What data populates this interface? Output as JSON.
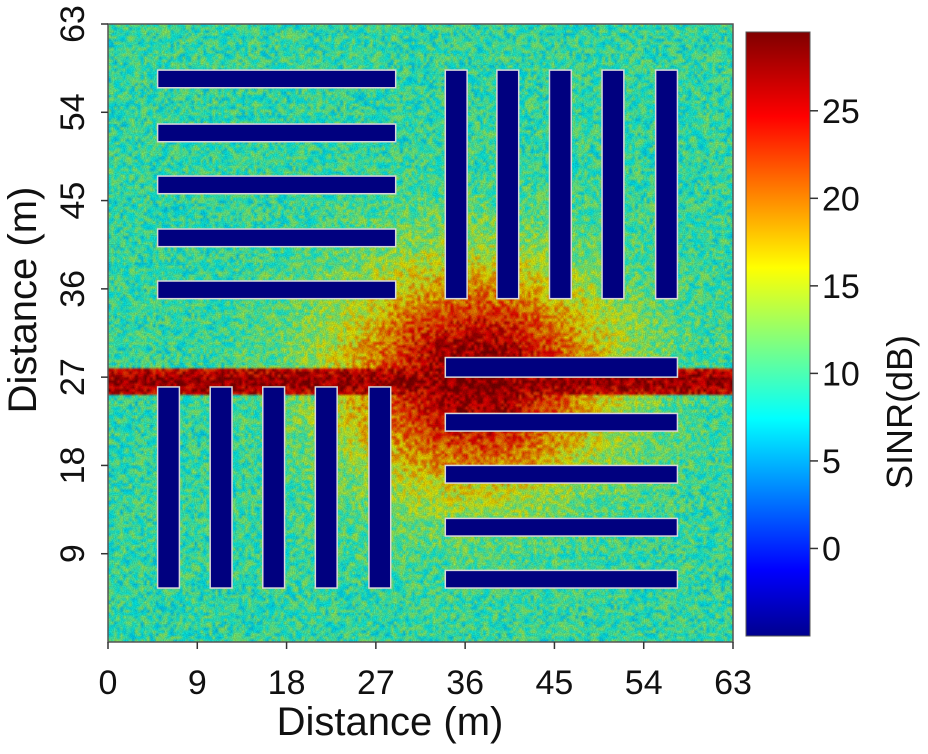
{
  "chart_data": {
    "type": "heatmap",
    "title": "",
    "xlabel": "Distance (m)",
    "ylabel": "Distance (m)",
    "xlim": [
      0,
      63
    ],
    "ylim": [
      0,
      63
    ],
    "xticks": [
      "0",
      "9",
      "18",
      "27",
      "36",
      "45",
      "54",
      "63"
    ],
    "yticks": [
      "9",
      "18",
      "27",
      "36",
      "45",
      "54",
      "63"
    ],
    "colorbar": {
      "label": "SINR(dB)",
      "range": [
        -5,
        29.5
      ],
      "ticks": [
        "0",
        "5",
        "10",
        "15",
        "20",
        "25"
      ],
      "colormap": "jet"
    },
    "background_level_db": 10,
    "hotspot": {
      "x": 37,
      "y": 27,
      "peak_db": 29
    },
    "beam_row": {
      "y": 26.5,
      "level_db": 28
    },
    "obstacle_level_db": -5,
    "obstacles": [
      {
        "x": [
          5,
          29
        ],
        "y": [
          56.5,
          58.3
        ]
      },
      {
        "x": [
          5,
          29
        ],
        "y": [
          51,
          52.8
        ]
      },
      {
        "x": [
          5,
          29
        ],
        "y": [
          45.7,
          47.5
        ]
      },
      {
        "x": [
          5,
          29
        ],
        "y": [
          40.3,
          42.1
        ]
      },
      {
        "x": [
          5,
          29
        ],
        "y": [
          35,
          36.8
        ]
      },
      {
        "x": [
          34,
          36.2
        ],
        "y": [
          35,
          58.3
        ]
      },
      {
        "x": [
          39.2,
          41.4
        ],
        "y": [
          35,
          58.3
        ]
      },
      {
        "x": [
          44.5,
          46.7
        ],
        "y": [
          35,
          58.3
        ]
      },
      {
        "x": [
          49.8,
          52
        ],
        "y": [
          35,
          58.3
        ]
      },
      {
        "x": [
          55.2,
          57.4
        ],
        "y": [
          35,
          58.3
        ]
      },
      {
        "x": [
          34,
          57.4
        ],
        "y": [
          27,
          29
        ]
      },
      {
        "x": [
          34,
          57.4
        ],
        "y": [
          21.5,
          23.3
        ]
      },
      {
        "x": [
          34,
          57.4
        ],
        "y": [
          16.2,
          18
        ]
      },
      {
        "x": [
          34,
          57.4
        ],
        "y": [
          10.8,
          12.6
        ]
      },
      {
        "x": [
          34,
          57.4
        ],
        "y": [
          5.5,
          7.3
        ]
      },
      {
        "x": [
          5,
          7.2
        ],
        "y": [
          5.5,
          26
        ]
      },
      {
        "x": [
          10.3,
          12.5
        ],
        "y": [
          5.5,
          26
        ]
      },
      {
        "x": [
          15.6,
          17.8
        ],
        "y": [
          5.5,
          26
        ]
      },
      {
        "x": [
          20.9,
          23.1
        ],
        "y": [
          5.5,
          26
        ]
      },
      {
        "x": [
          26.3,
          28.5
        ],
        "y": [
          5.5,
          26
        ]
      }
    ]
  }
}
